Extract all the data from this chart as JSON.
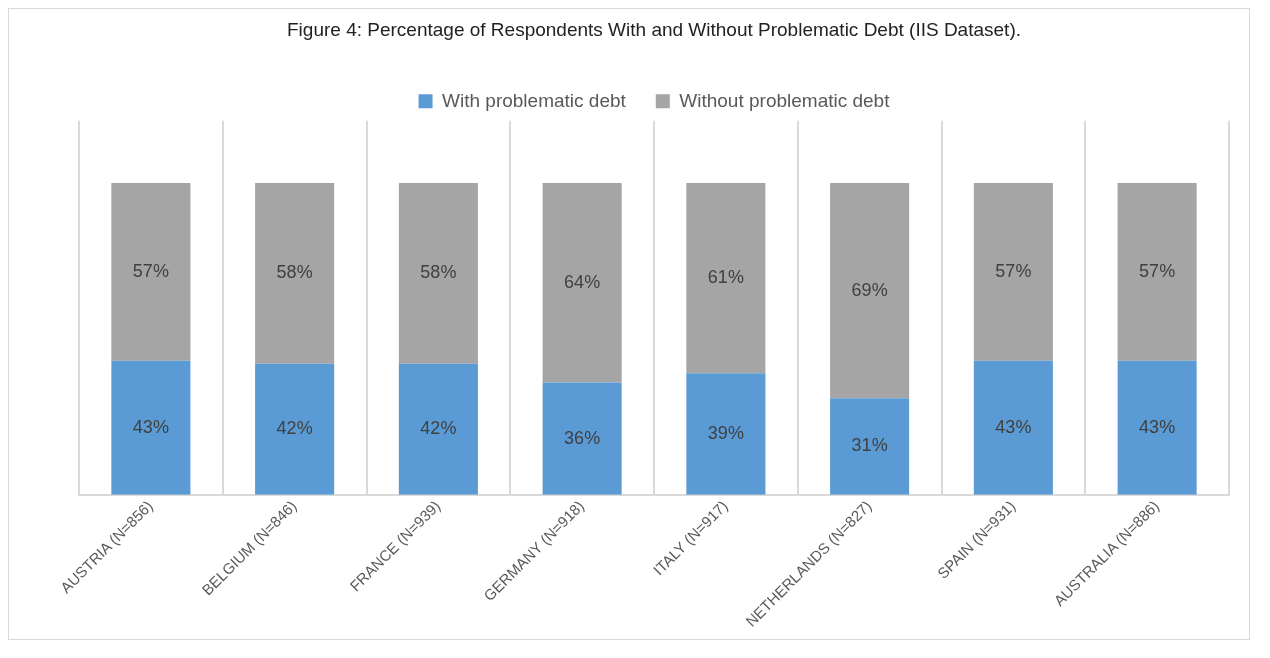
{
  "chart_data": {
    "type": "bar",
    "title": "Figure 4: Percentage of Respondents With and Without Problematic Debt (IIS Dataset).",
    "categories": [
      "AUSTRIA (N=856)",
      "BELGIUM (N=846)",
      "FRANCE (N=939)",
      "GERMANY (N=918)",
      "ITALY (N=917)",
      "NETHERLANDS (N=827)",
      "SPAIN (N=931)",
      "AUSTRALIA (N=886)"
    ],
    "series": [
      {
        "name": "With problematic debt",
        "color": "#5b9bd5",
        "values": [
          43,
          42,
          42,
          36,
          39,
          31,
          43,
          43
        ],
        "value_labels": [
          "43%",
          "42%",
          "42%",
          "36%",
          "39%",
          "31%",
          "43%",
          "43%"
        ]
      },
      {
        "name": "Without problematic debt",
        "color": "#a5a5a5",
        "values": [
          57,
          58,
          58,
          64,
          61,
          69,
          57,
          57
        ],
        "value_labels": [
          "57%",
          "58%",
          "58%",
          "64%",
          "61%",
          "69%",
          "57%",
          "57%"
        ]
      }
    ],
    "stacked": true,
    "tick_labels": "x",
    "grid": "x",
    "legend": "top"
  }
}
